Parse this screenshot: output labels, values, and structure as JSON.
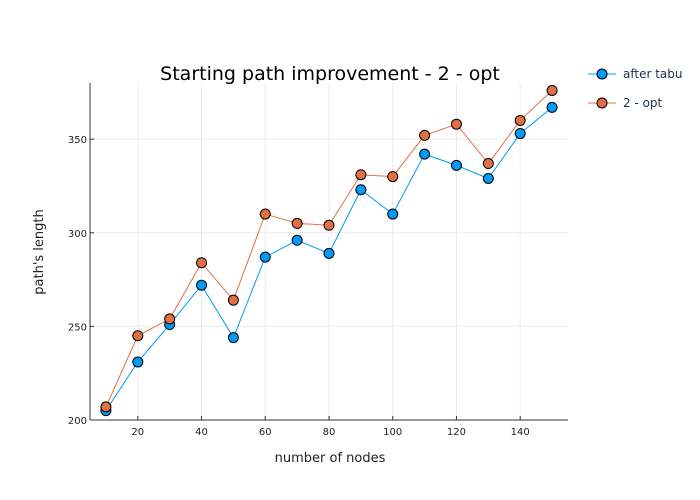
{
  "chart_data": {
    "type": "line",
    "title": "Starting path improvement - 2 - opt",
    "xlabel": "number of nodes",
    "ylabel": "path's length",
    "x": [
      10,
      20,
      30,
      40,
      50,
      60,
      70,
      80,
      90,
      100,
      110,
      120,
      130,
      140,
      150
    ],
    "xlim": [
      5,
      155
    ],
    "ylim": [
      200,
      380
    ],
    "xticks": [
      20,
      40,
      60,
      80,
      100,
      120,
      140
    ],
    "yticks": [
      200,
      250,
      300,
      350
    ],
    "grid": true,
    "legend_position": "top-right outside",
    "series": [
      {
        "name": "after tabu",
        "color": "#009af9",
        "values": [
          205,
          231,
          251,
          272,
          244,
          287,
          296,
          289,
          323,
          310,
          342,
          336,
          329,
          353,
          367
        ]
      },
      {
        "name": "2 - opt",
        "color": "#e26f46",
        "values": [
          207,
          245,
          254,
          284,
          264,
          310,
          305,
          304,
          331,
          330,
          352,
          358,
          337,
          360,
          376
        ]
      }
    ]
  }
}
